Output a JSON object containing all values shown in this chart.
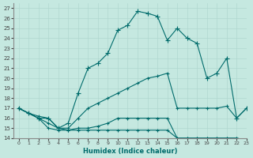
{
  "xlabel": "Humidex (Indice chaleur)",
  "xlim": [
    -0.5,
    23
  ],
  "ylim": [
    14,
    27.5
  ],
  "bg_color": "#c5e8e0",
  "line_color": "#006b6b",
  "grid_color": "#b0d8d0",
  "curve1_x": [
    0,
    1,
    2,
    3,
    4,
    5,
    6,
    7,
    8,
    9,
    10,
    11,
    12,
    13,
    14,
    15,
    16,
    17,
    18,
    19,
    20,
    21,
    22,
    23
  ],
  "curve1_y": [
    17.0,
    16.5,
    16.0,
    16.0,
    15.0,
    15.5,
    18.5,
    21.0,
    21.5,
    22.5,
    24.8,
    25.3,
    26.7,
    26.5,
    26.2,
    23.8,
    25.0,
    24.0,
    23.5,
    20.0,
    20.5,
    22.0,
    16.0,
    17.0
  ],
  "curve2_x": [
    0,
    1,
    2,
    3,
    4,
    5,
    6,
    7,
    8,
    9,
    10,
    11,
    12,
    13,
    14,
    15,
    16,
    17,
    18,
    19,
    20,
    21,
    22,
    23
  ],
  "curve2_y": [
    17.0,
    16.5,
    16.2,
    16.0,
    15.0,
    15.0,
    16.0,
    17.0,
    17.5,
    18.0,
    18.5,
    19.0,
    19.5,
    20.0,
    20.2,
    20.5,
    17.0,
    17.0,
    17.0,
    17.0,
    17.0,
    17.2,
    16.0,
    17.0
  ],
  "curve3_x": [
    0,
    1,
    2,
    3,
    4,
    5,
    6,
    7,
    8,
    9,
    10,
    11,
    12,
    13,
    14,
    15,
    16,
    17,
    18,
    19,
    20,
    21,
    22,
    23
  ],
  "curve3_y": [
    17.0,
    16.5,
    16.0,
    15.5,
    15.0,
    14.8,
    15.0,
    15.0,
    15.2,
    15.5,
    16.0,
    16.0,
    16.0,
    16.0,
    16.0,
    16.0,
    14.0,
    14.0,
    14.0,
    14.0,
    14.0,
    14.0,
    14.0,
    13.8
  ],
  "curve4_x": [
    0,
    1,
    2,
    3,
    4,
    5,
    6,
    7,
    8,
    9,
    10,
    11,
    12,
    13,
    14,
    15,
    16,
    17,
    18,
    19,
    20,
    21,
    22,
    23
  ],
  "curve4_y": [
    17.0,
    16.5,
    16.0,
    15.0,
    14.8,
    14.8,
    14.8,
    14.8,
    14.8,
    14.8,
    14.8,
    14.8,
    14.8,
    14.8,
    14.8,
    14.8,
    14.0,
    14.0,
    14.0,
    14.0,
    14.0,
    14.0,
    14.0,
    13.8
  ],
  "yticks": [
    14,
    15,
    16,
    17,
    18,
    19,
    20,
    21,
    22,
    23,
    24,
    25,
    26,
    27
  ],
  "xticks": [
    0,
    1,
    2,
    3,
    4,
    5,
    6,
    7,
    8,
    9,
    10,
    11,
    12,
    13,
    14,
    15,
    16,
    17,
    18,
    19,
    20,
    21,
    22,
    23
  ]
}
